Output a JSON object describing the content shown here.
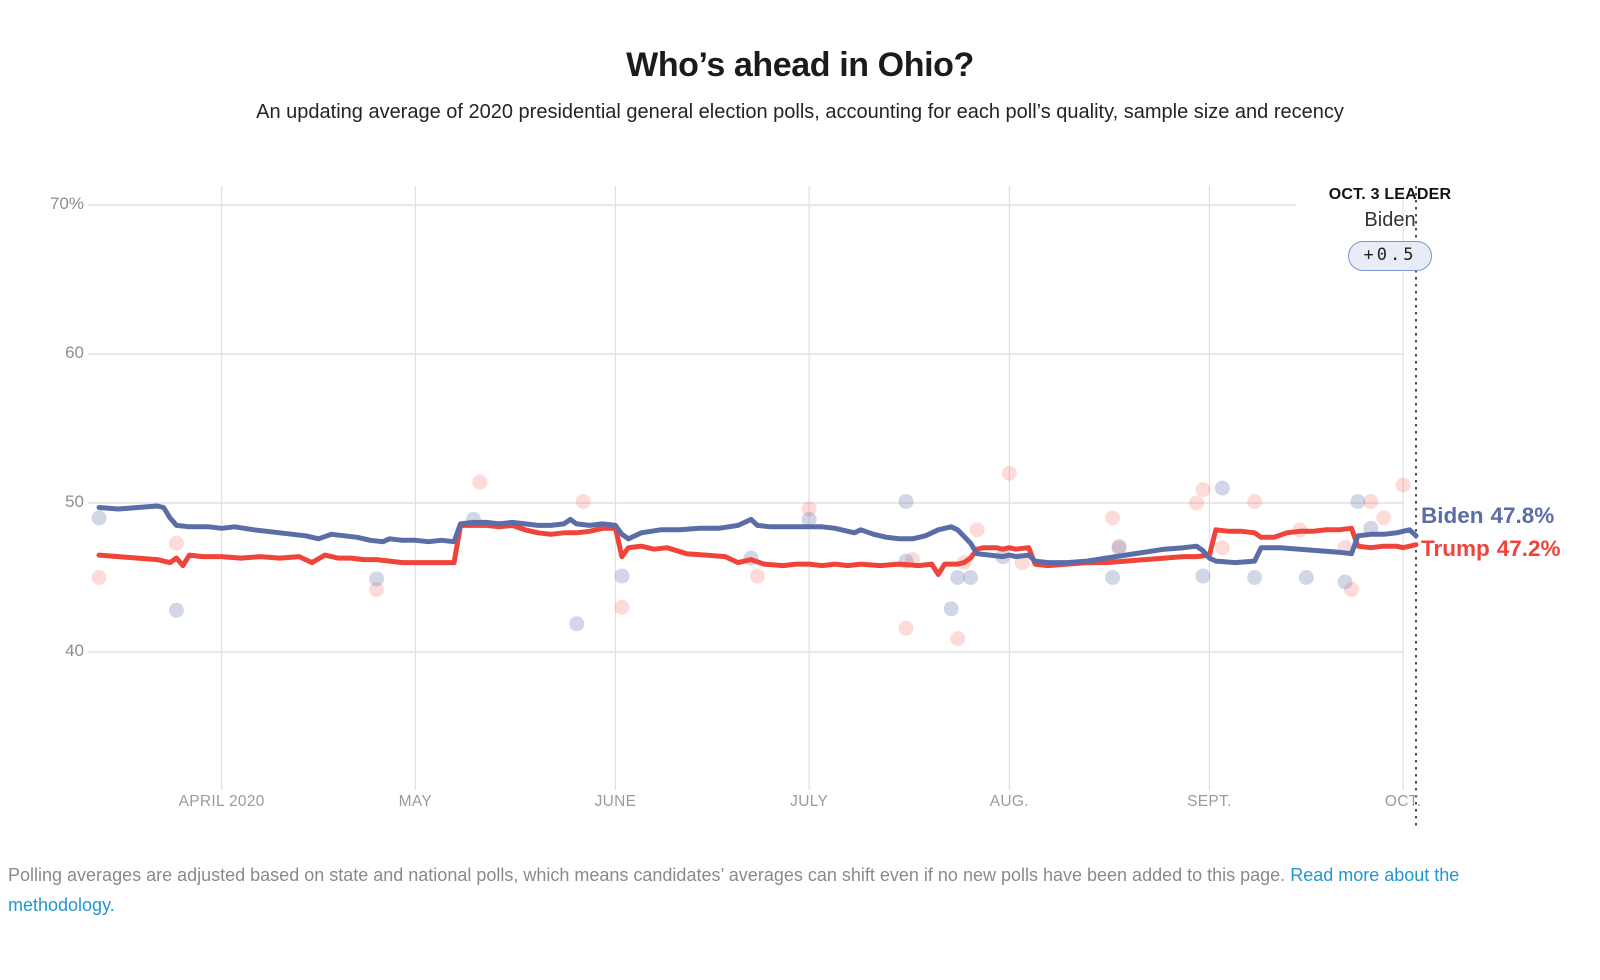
{
  "header": {
    "title": "Who’s ahead in Ohio?",
    "subtitle": "An updating average of 2020 presidential general election polls, accounting for each poll’s quality, sample size and recency"
  },
  "chart_data": {
    "type": "line",
    "title": "Who’s ahead in Ohio?",
    "ylim": [
      30.5,
      70
    ],
    "grid": true,
    "y_ticks": [
      {
        "label": "70%",
        "value": 70
      },
      {
        "label": "60",
        "value": 60
      },
      {
        "label": "50",
        "value": 50
      },
      {
        "label": "40",
        "value": 40
      }
    ],
    "x_months": [
      {
        "label": "APRIL 2020",
        "day": 19
      },
      {
        "label": "MAY",
        "day": 49
      },
      {
        "label": "JUNE",
        "day": 80
      },
      {
        "label": "JULY",
        "day": 110
      },
      {
        "label": "AUG.",
        "day": 141
      },
      {
        "label": "SEPT.",
        "day": 172
      },
      {
        "label": "OCT.",
        "day": 202
      }
    ],
    "x_note": "day 0 = chart start (mid-March 2020); dashed marker at day 204 = Oct. 3",
    "annotation": {
      "heading": "OCT. 3 LEADER",
      "leader": "Biden",
      "margin": "+0.5"
    },
    "series": [
      {
        "name": "Biden",
        "end_label": "Biden",
        "end_value": "47.8%",
        "points": [
          [
            0,
            49.7
          ],
          [
            3,
            49.6
          ],
          [
            6,
            49.7
          ],
          [
            9,
            49.8
          ],
          [
            10,
            49.7
          ],
          [
            11,
            49.0
          ],
          [
            12,
            48.5
          ],
          [
            14,
            48.4
          ],
          [
            17,
            48.4
          ],
          [
            19,
            48.3
          ],
          [
            21,
            48.4
          ],
          [
            24,
            48.2
          ],
          [
            26,
            48.1
          ],
          [
            28,
            48.0
          ],
          [
            30,
            47.9
          ],
          [
            32,
            47.8
          ],
          [
            34,
            47.6
          ],
          [
            36,
            47.9
          ],
          [
            38,
            47.8
          ],
          [
            40,
            47.7
          ],
          [
            42,
            47.5
          ],
          [
            44,
            47.4
          ],
          [
            45,
            47.6
          ],
          [
            47,
            47.5
          ],
          [
            49,
            47.5
          ],
          [
            51,
            47.4
          ],
          [
            53,
            47.5
          ],
          [
            55,
            47.4
          ],
          [
            56,
            48.6
          ],
          [
            58,
            48.7
          ],
          [
            60,
            48.7
          ],
          [
            62,
            48.6
          ],
          [
            64,
            48.7
          ],
          [
            66,
            48.6
          ],
          [
            68,
            48.5
          ],
          [
            70,
            48.5
          ],
          [
            72,
            48.6
          ],
          [
            73,
            48.9
          ],
          [
            74,
            48.6
          ],
          [
            76,
            48.5
          ],
          [
            78,
            48.6
          ],
          [
            80,
            48.5
          ],
          [
            81,
            47.9
          ],
          [
            82,
            47.6
          ],
          [
            84,
            48.0
          ],
          [
            87,
            48.2
          ],
          [
            90,
            48.2
          ],
          [
            93,
            48.3
          ],
          [
            96,
            48.3
          ],
          [
            99,
            48.5
          ],
          [
            101,
            48.9
          ],
          [
            102,
            48.5
          ],
          [
            104,
            48.4
          ],
          [
            107,
            48.4
          ],
          [
            110,
            48.4
          ],
          [
            112,
            48.4
          ],
          [
            114,
            48.3
          ],
          [
            116,
            48.1
          ],
          [
            117,
            48.0
          ],
          [
            118,
            48.2
          ],
          [
            120,
            47.9
          ],
          [
            122,
            47.7
          ],
          [
            124,
            47.6
          ],
          [
            126,
            47.6
          ],
          [
            128,
            47.8
          ],
          [
            130,
            48.2
          ],
          [
            132,
            48.4
          ],
          [
            133,
            48.2
          ],
          [
            135,
            47.3
          ],
          [
            136,
            46.6
          ],
          [
            138,
            46.5
          ],
          [
            140,
            46.4
          ],
          [
            141,
            46.5
          ],
          [
            142,
            46.4
          ],
          [
            144,
            46.5
          ],
          [
            145,
            46.1
          ],
          [
            147,
            46.0
          ],
          [
            150,
            46.0
          ],
          [
            153,
            46.1
          ],
          [
            156,
            46.3
          ],
          [
            159,
            46.5
          ],
          [
            162,
            46.7
          ],
          [
            165,
            46.9
          ],
          [
            168,
            47.0
          ],
          [
            170,
            47.1
          ],
          [
            171,
            46.8
          ],
          [
            172,
            46.3
          ],
          [
            173,
            46.1
          ],
          [
            176,
            46.0
          ],
          [
            179,
            46.1
          ],
          [
            180,
            47.0
          ],
          [
            183,
            47.0
          ],
          [
            186,
            46.9
          ],
          [
            189,
            46.8
          ],
          [
            192,
            46.7
          ],
          [
            194,
            46.6
          ],
          [
            195,
            47.8
          ],
          [
            197,
            47.9
          ],
          [
            199,
            47.9
          ],
          [
            201,
            48.0
          ],
          [
            203,
            48.2
          ],
          [
            204,
            47.8
          ]
        ]
      },
      {
        "name": "Trump",
        "end_label": "Trump",
        "end_value": "47.2%",
        "points": [
          [
            0,
            46.5
          ],
          [
            3,
            46.4
          ],
          [
            6,
            46.3
          ],
          [
            9,
            46.2
          ],
          [
            11,
            46.0
          ],
          [
            12,
            46.3
          ],
          [
            13,
            45.8
          ],
          [
            14,
            46.5
          ],
          [
            16,
            46.4
          ],
          [
            19,
            46.4
          ],
          [
            22,
            46.3
          ],
          [
            25,
            46.4
          ],
          [
            28,
            46.3
          ],
          [
            31,
            46.4
          ],
          [
            33,
            46.0
          ],
          [
            35,
            46.5
          ],
          [
            37,
            46.3
          ],
          [
            39,
            46.3
          ],
          [
            41,
            46.2
          ],
          [
            43,
            46.2
          ],
          [
            45,
            46.1
          ],
          [
            47,
            46.0
          ],
          [
            49,
            46.0
          ],
          [
            52,
            46.0
          ],
          [
            55,
            46.0
          ],
          [
            56,
            48.5
          ],
          [
            58,
            48.5
          ],
          [
            60,
            48.5
          ],
          [
            62,
            48.4
          ],
          [
            64,
            48.5
          ],
          [
            66,
            48.2
          ],
          [
            68,
            48.0
          ],
          [
            70,
            47.9
          ],
          [
            72,
            48.0
          ],
          [
            74,
            48.0
          ],
          [
            76,
            48.1
          ],
          [
            78,
            48.3
          ],
          [
            80,
            48.3
          ],
          [
            81,
            46.4
          ],
          [
            82,
            47.0
          ],
          [
            84,
            47.1
          ],
          [
            86,
            46.9
          ],
          [
            88,
            47.0
          ],
          [
            91,
            46.6
          ],
          [
            94,
            46.5
          ],
          [
            97,
            46.4
          ],
          [
            99,
            46.0
          ],
          [
            101,
            46.2
          ],
          [
            103,
            45.9
          ],
          [
            106,
            45.8
          ],
          [
            108,
            45.9
          ],
          [
            110,
            45.9
          ],
          [
            112,
            45.8
          ],
          [
            114,
            45.9
          ],
          [
            116,
            45.8
          ],
          [
            118,
            45.9
          ],
          [
            121,
            45.8
          ],
          [
            124,
            45.9
          ],
          [
            127,
            45.8
          ],
          [
            129,
            45.9
          ],
          [
            130,
            45.2
          ],
          [
            131,
            45.9
          ],
          [
            133,
            45.9
          ],
          [
            134,
            46.0
          ],
          [
            135,
            46.3
          ],
          [
            136,
            46.9
          ],
          [
            137,
            47.0
          ],
          [
            139,
            47.0
          ],
          [
            140,
            46.9
          ],
          [
            141,
            47.0
          ],
          [
            142,
            46.9
          ],
          [
            144,
            47.0
          ],
          [
            145,
            45.9
          ],
          [
            147,
            45.8
          ],
          [
            150,
            45.9
          ],
          [
            153,
            46.0
          ],
          [
            156,
            46.0
          ],
          [
            159,
            46.1
          ],
          [
            162,
            46.2
          ],
          [
            165,
            46.3
          ],
          [
            168,
            46.4
          ],
          [
            170,
            46.4
          ],
          [
            172,
            46.5
          ],
          [
            173,
            48.2
          ],
          [
            175,
            48.1
          ],
          [
            177,
            48.1
          ],
          [
            179,
            48.0
          ],
          [
            180,
            47.7
          ],
          [
            182,
            47.7
          ],
          [
            184,
            48.0
          ],
          [
            186,
            48.1
          ],
          [
            188,
            48.1
          ],
          [
            190,
            48.2
          ],
          [
            192,
            48.2
          ],
          [
            194,
            48.3
          ],
          [
            195,
            47.1
          ],
          [
            197,
            47.0
          ],
          [
            199,
            47.1
          ],
          [
            201,
            47.1
          ],
          [
            202,
            47.0
          ],
          [
            203,
            47.1
          ],
          [
            204,
            47.2
          ]
        ]
      }
    ],
    "poll_dots": {
      "biden": [
        [
          0,
          49.0
        ],
        [
          12,
          42.8
        ],
        [
          43,
          44.9
        ],
        [
          58,
          48.9
        ],
        [
          74,
          41.9
        ],
        [
          81,
          45.1
        ],
        [
          101,
          46.3
        ],
        [
          110,
          48.9
        ],
        [
          125,
          46.1
        ],
        [
          125,
          50.1
        ],
        [
          132,
          42.9
        ],
        [
          133,
          45.0
        ],
        [
          135,
          45.0
        ],
        [
          140,
          46.4
        ],
        [
          157,
          45.0
        ],
        [
          158,
          47.0
        ],
        [
          171,
          45.1
        ],
        [
          174,
          51.0
        ],
        [
          179,
          45.0
        ],
        [
          187,
          45.0
        ],
        [
          193,
          44.7
        ],
        [
          195,
          50.1
        ],
        [
          197,
          48.3
        ]
      ],
      "trump": [
        [
          0,
          45.0
        ],
        [
          12,
          47.3
        ],
        [
          43,
          44.2
        ],
        [
          59,
          51.4
        ],
        [
          75,
          50.1
        ],
        [
          81,
          43.0
        ],
        [
          102,
          45.1
        ],
        [
          110,
          49.6
        ],
        [
          125,
          41.6
        ],
        [
          126,
          46.2
        ],
        [
          133,
          40.9
        ],
        [
          134,
          46.0
        ],
        [
          136,
          48.2
        ],
        [
          141,
          52.0
        ],
        [
          143,
          46.0
        ],
        [
          157,
          49.0
        ],
        [
          158,
          47.1
        ],
        [
          170,
          50.0
        ],
        [
          171,
          50.9
        ],
        [
          174,
          47.0
        ],
        [
          179,
          50.1
        ],
        [
          186,
          48.2
        ],
        [
          193,
          47.0
        ],
        [
          194,
          44.2
        ],
        [
          197,
          50.1
        ],
        [
          199,
          49.0
        ],
        [
          202,
          51.2
        ]
      ]
    }
  },
  "footer": {
    "text": "Polling averages are adjusted based on state and national polls, which means candidates’ averages can shift even if no new polls have been added to this page.",
    "link": "Read more about the methodology."
  },
  "colors": {
    "biden": "#5b6da6",
    "trump": "#f0443a",
    "biden_dot": "#7383b3",
    "trump_dot": "#f4685f",
    "grid": "#d9d9d9",
    "month_grid": "#e0e0e0",
    "dashed_line": "#3a3a3a",
    "pill_bg": "#e8ecf7",
    "pill_border": "#8093cd",
    "link": "#2196d3"
  }
}
